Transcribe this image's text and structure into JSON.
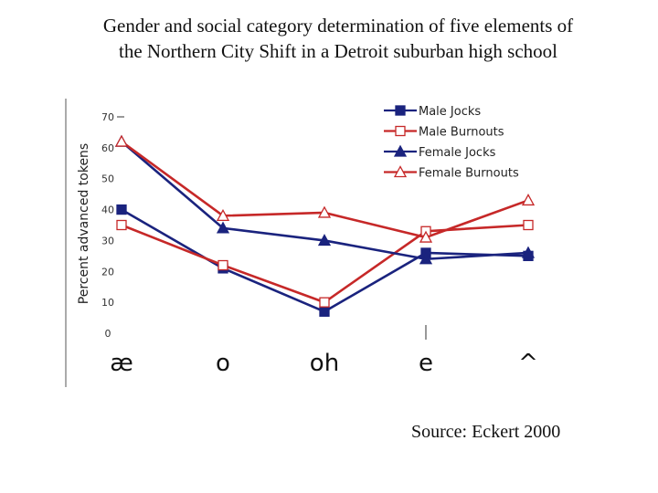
{
  "title_lines": [
    "Gender and social category determination of five elements of",
    "the Northern City Shift in a Detroit suburban high school"
  ],
  "source": "Source:  Eckert 2000",
  "chart_data": {
    "type": "line",
    "title": "Gender and social category determination of five elements of the Northern City Shift in a Detroit suburban high school",
    "xlabel": "",
    "ylabel": "Percent advanced tokens",
    "categories": [
      "æ",
      "o",
      "oh",
      "e",
      "^"
    ],
    "yticks": [
      0,
      10,
      20,
      30,
      40,
      50,
      60,
      70
    ],
    "ylim": [
      0,
      70
    ],
    "legend_position": "top-right",
    "series": [
      {
        "name": "Male Jocks",
        "color": "#1a237e",
        "marker": "square-filled",
        "values": [
          40,
          21,
          7,
          26,
          25
        ]
      },
      {
        "name": "Male Burnouts",
        "color": "#c62828",
        "marker": "square-open",
        "values": [
          35,
          22,
          10,
          33,
          35
        ]
      },
      {
        "name": "Female Jocks",
        "color": "#1a237e",
        "marker": "triangle-filled",
        "values": [
          62,
          34,
          30,
          24,
          26
        ]
      },
      {
        "name": "Female Burnouts",
        "color": "#c62828",
        "marker": "triangle-open",
        "values": [
          62,
          38,
          39,
          31,
          43
        ]
      }
    ]
  }
}
